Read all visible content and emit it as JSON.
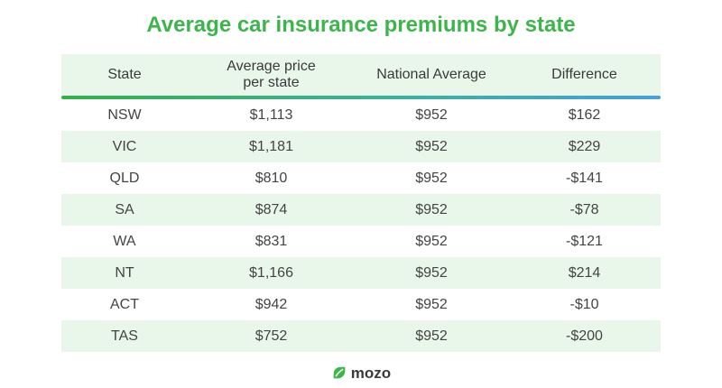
{
  "title": "Average car insurance premiums by state",
  "table": {
    "headers": {
      "state": "State",
      "avg_price_line1": "Average price",
      "avg_price_line2": "per state",
      "national": "National Average",
      "difference": "Difference"
    },
    "rows": [
      {
        "state": "NSW",
        "avg": "$1,113",
        "national": "$952",
        "diff": "$162"
      },
      {
        "state": "VIC",
        "avg": "$1,181",
        "national": "$952",
        "diff": "$229"
      },
      {
        "state": "QLD",
        "avg": "$810",
        "national": "$952",
        "diff": "-$141"
      },
      {
        "state": "SA",
        "avg": "$874",
        "national": "$952",
        "diff": "-$78"
      },
      {
        "state": "WA",
        "avg": "$831",
        "national": "$952",
        "diff": "-$121"
      },
      {
        "state": "NT",
        "avg": "$1,166",
        "national": "$952",
        "diff": "$214"
      },
      {
        "state": "ACT",
        "avg": "$942",
        "national": "$952",
        "diff": "-$10"
      },
      {
        "state": "TAS",
        "avg": "$752",
        "national": "$952",
        "diff": "-$200"
      }
    ]
  },
  "logo": {
    "text": "mozo",
    "icon": "mozo-leaf-icon",
    "color": "#3cb54a"
  },
  "colors": {
    "title": "#3cb54a",
    "stripe": "#e9f6ea",
    "rule_start": "#34b04a",
    "rule_end": "#4a9fd8"
  }
}
